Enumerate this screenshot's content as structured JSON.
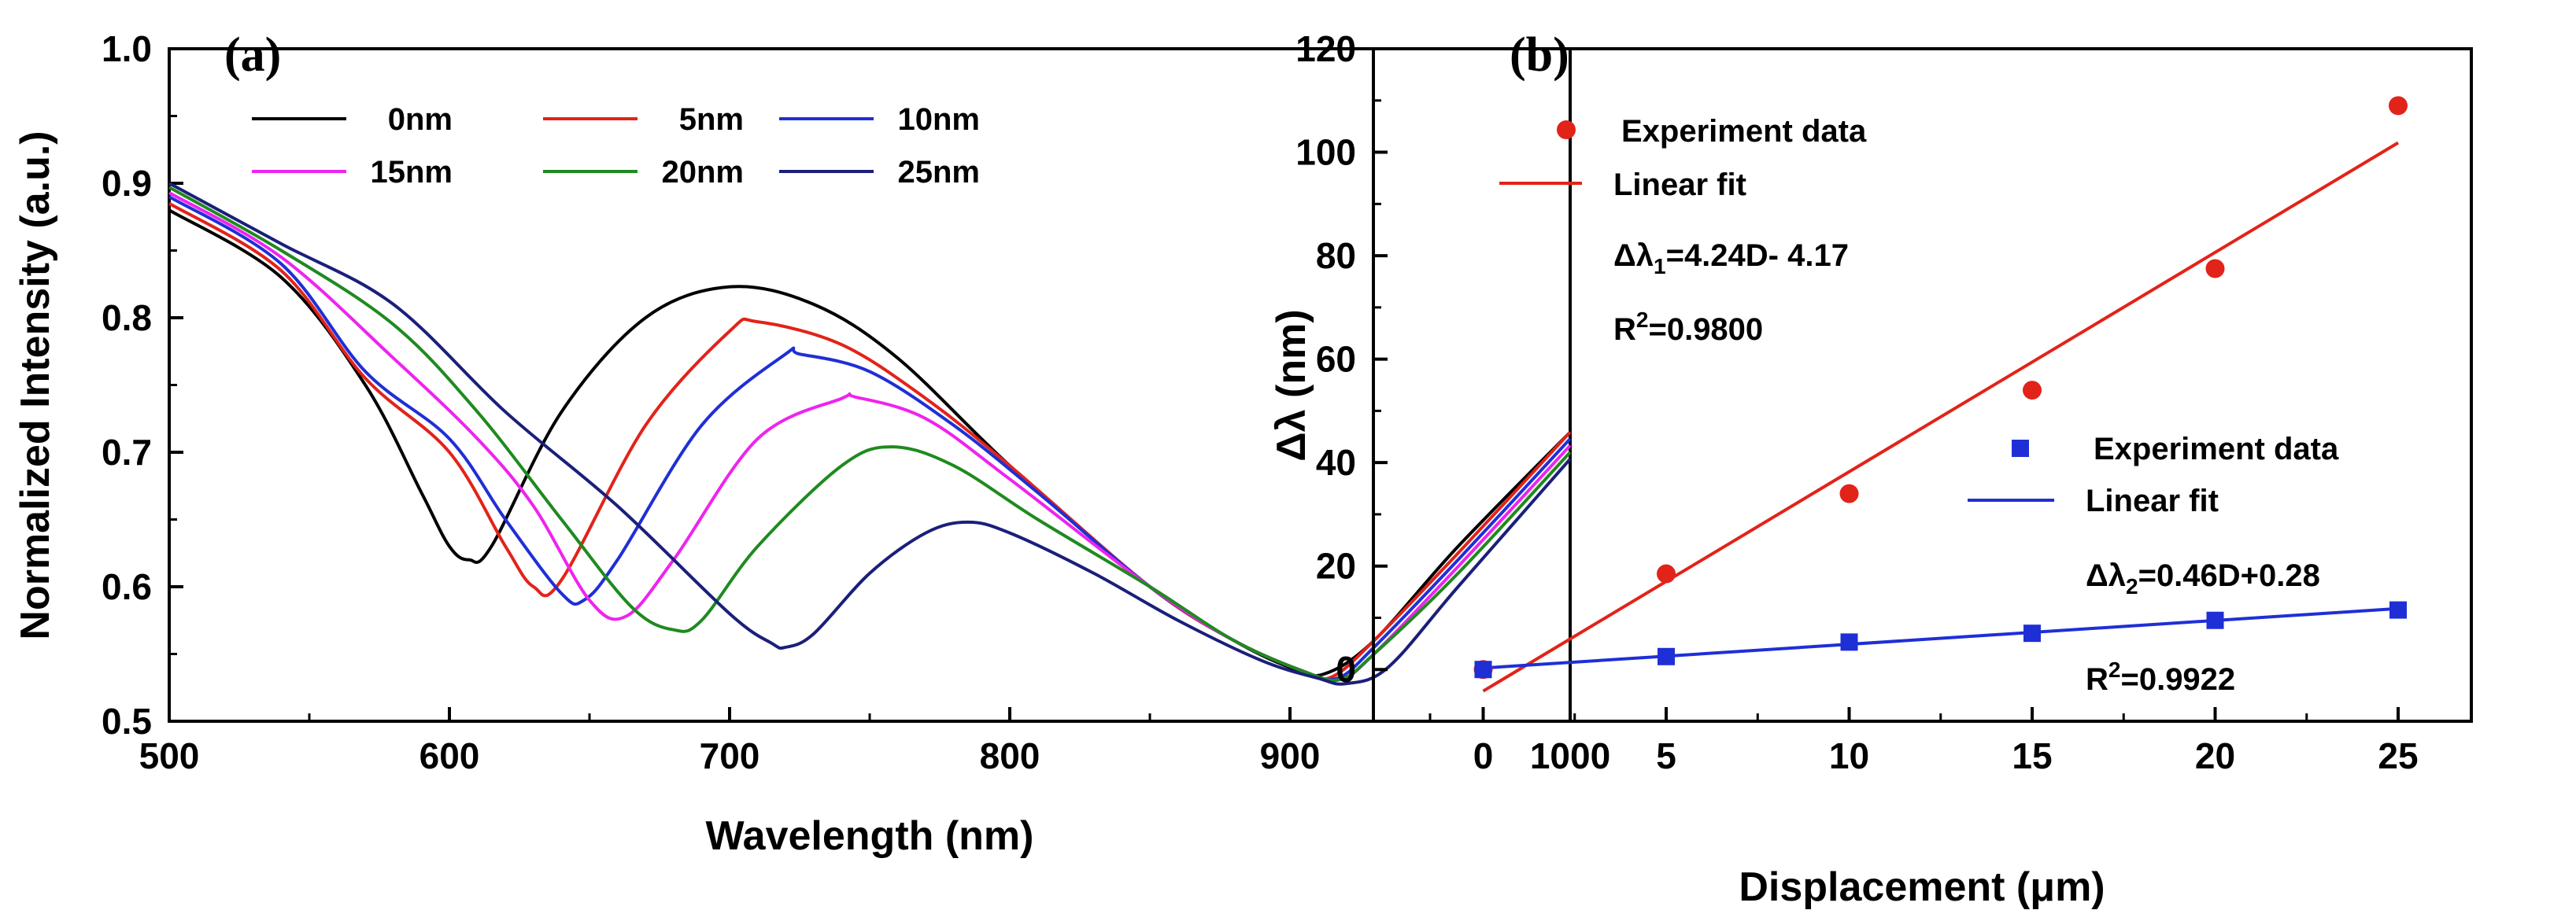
{
  "chart_data": [
    {
      "panel": "(a)",
      "type": "line",
      "xlabel": "Wavelength (nm)",
      "ylabel": "Normalized Intensity (a.u.)",
      "xlim": [
        500,
        1000
      ],
      "ylim": [
        0.5,
        1.0
      ],
      "xticks": [
        "500",
        "600",
        "700",
        "800",
        "900",
        "1000"
      ],
      "yticks": [
        "0.5",
        "0.6",
        "0.7",
        "0.8",
        "0.9",
        "1.0"
      ],
      "legend_position": "top",
      "series": [
        {
          "name": "0nm",
          "color": "#000000",
          "x": [
            500,
            540,
            570,
            590,
            600,
            607,
            615,
            640,
            670,
            700,
            730,
            760,
            800,
            850,
            880,
            900,
            912,
            930,
            960,
            1000
          ],
          "y": [
            0.88,
            0.83,
            0.75,
            0.67,
            0.63,
            0.62,
            0.63,
            0.73,
            0.8,
            0.823,
            0.81,
            0.77,
            0.69,
            0.6,
            0.56,
            0.54,
            0.535,
            0.56,
            0.63,
            0.715
          ]
        },
        {
          "name": "5nm",
          "color": "#e2231a",
          "x": [
            500,
            540,
            570,
            600,
            620,
            630,
            640,
            670,
            700,
            710,
            740,
            770,
            800,
            850,
            880,
            905,
            915,
            930,
            960,
            1000
          ],
          "y": [
            0.885,
            0.835,
            0.755,
            0.7,
            0.63,
            0.6,
            0.605,
            0.72,
            0.79,
            0.797,
            0.78,
            0.74,
            0.69,
            0.6,
            0.56,
            0.537,
            0.533,
            0.56,
            0.625,
            0.715
          ]
        },
        {
          "name": "10nm",
          "color": "#1f2fd6",
          "x": [
            500,
            540,
            570,
            600,
            620,
            640,
            648,
            660,
            690,
            720,
            725,
            750,
            780,
            810,
            850,
            880,
            905,
            917,
            930,
            960,
            1000
          ],
          "y": [
            0.89,
            0.84,
            0.76,
            0.71,
            0.65,
            0.595,
            0.59,
            0.62,
            0.72,
            0.773,
            0.773,
            0.76,
            0.72,
            0.67,
            0.6,
            0.56,
            0.537,
            0.532,
            0.555,
            0.62,
            0.71
          ]
        },
        {
          "name": "15nm",
          "color": "#ee24ee",
          "x": [
            500,
            540,
            580,
            610,
            630,
            650,
            663,
            680,
            710,
            740,
            745,
            770,
            800,
            850,
            880,
            905,
            918,
            930,
            960,
            1000
          ],
          "y": [
            0.893,
            0.845,
            0.77,
            0.71,
            0.66,
            0.59,
            0.578,
            0.62,
            0.71,
            0.74,
            0.741,
            0.725,
            0.68,
            0.6,
            0.56,
            0.537,
            0.531,
            0.55,
            0.615,
            0.705
          ]
        },
        {
          "name": "20nm",
          "color": "#1f8a1f",
          "x": [
            500,
            540,
            580,
            610,
            640,
            665,
            680,
            690,
            710,
            740,
            758,
            780,
            810,
            850,
            880,
            905,
            918,
            930,
            960,
            1000
          ],
          "y": [
            0.897,
            0.85,
            0.795,
            0.73,
            0.65,
            0.585,
            0.568,
            0.575,
            0.63,
            0.69,
            0.704,
            0.69,
            0.65,
            0.6,
            0.56,
            0.537,
            0.531,
            0.55,
            0.61,
            0.7
          ]
        },
        {
          "name": "25nm",
          "color": "#1b1f7a",
          "x": [
            500,
            540,
            580,
            620,
            660,
            700,
            715,
            720,
            730,
            750,
            770,
            785,
            800,
            830,
            860,
            890,
            910,
            920,
            935,
            960,
            1000
          ],
          "y": [
            0.9,
            0.855,
            0.81,
            0.73,
            0.66,
            0.58,
            0.558,
            0.555,
            0.565,
            0.61,
            0.64,
            0.648,
            0.64,
            0.61,
            0.575,
            0.545,
            0.532,
            0.528,
            0.54,
            0.6,
            0.695
          ]
        }
      ]
    },
    {
      "panel": "(b)",
      "type": "scatter",
      "xlabel": "Displacement (μm)",
      "ylabel": "Δλ (nm)",
      "xlim": [
        -3,
        27
      ],
      "ylim": [
        -10,
        120
      ],
      "xticks": [
        "0",
        "5",
        "10",
        "15",
        "20",
        "25"
      ],
      "yticks": [
        "0",
        "20",
        "40",
        "60",
        "80",
        "100",
        "120"
      ],
      "series": [
        {
          "name": "Experiment data",
          "marker": "circle",
          "color": "#e2231a",
          "x": [
            0,
            5,
            10,
            15,
            20,
            25
          ],
          "y": [
            0,
            18.5,
            34,
            54,
            77.5,
            109
          ]
        },
        {
          "name": "Linear fit",
          "type": "line",
          "color": "#e2231a",
          "slope": 4.24,
          "intercept": -4.17,
          "x_range": [
            0,
            25
          ]
        },
        {
          "name": "Experiment data",
          "marker": "square",
          "color": "#1f2fd6",
          "x": [
            0,
            5,
            10,
            15,
            20,
            25
          ],
          "y": [
            0,
            2.5,
            5.3,
            7,
            9.5,
            11.5
          ]
        },
        {
          "name": "Linear fit",
          "type": "line",
          "color": "#1f2fd6",
          "slope": 0.46,
          "intercept": 0.28,
          "x_range": [
            0,
            25
          ]
        }
      ],
      "annotations": {
        "eq1_prefix": "Δλ",
        "eq1_sub": "1",
        "eq1_rest": "=4.24D- 4.17",
        "r1_prefix": "R",
        "r1_sup": "2",
        "r1_rest": "=0.9800",
        "eq2_prefix": "Δλ",
        "eq2_sub": "2",
        "eq2_rest": "=0.46D+0.28",
        "r2_prefix": "R",
        "r2_sup": "2",
        "r2_rest": "=0.9922"
      }
    }
  ]
}
